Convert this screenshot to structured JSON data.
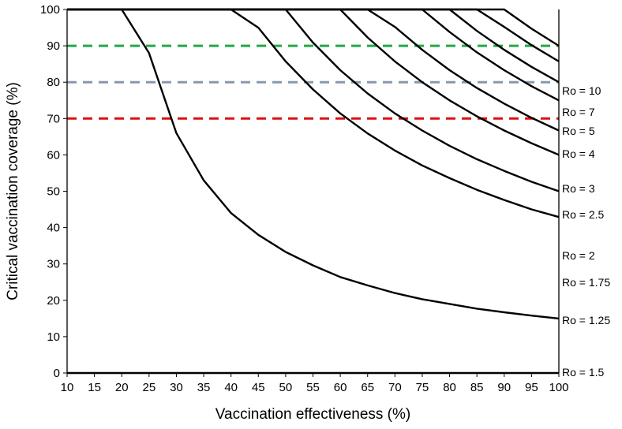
{
  "chart_data": {
    "type": "line",
    "title": "",
    "xlabel": "Vaccination effectiveness (%)",
    "ylabel": "Critical vaccination coverage (%)",
    "xlim": [
      10,
      100
    ],
    "ylim": [
      0,
      100
    ],
    "x_ticks": [
      10,
      15,
      20,
      25,
      30,
      35,
      40,
      45,
      50,
      55,
      60,
      65,
      70,
      75,
      80,
      85,
      90,
      95,
      100
    ],
    "y_ticks": [
      0,
      10,
      20,
      30,
      40,
      50,
      60,
      70,
      80,
      90,
      100
    ],
    "grid": false,
    "reference_lines": [
      {
        "y": 90,
        "color": "#22aa44",
        "style": "dashed"
      },
      {
        "y": 80,
        "color": "#8899aa",
        "style": "dashed"
      },
      {
        "y": 70,
        "color": "#dd1111",
        "style": "dashed"
      }
    ],
    "x": [
      10,
      15,
      20,
      25,
      30,
      35,
      40,
      45,
      50,
      55,
      60,
      65,
      70,
      75,
      80,
      85,
      90,
      95,
      100
    ],
    "series": [
      {
        "name": "Ro = 1.25",
        "label": "Ro = 1.25",
        "values": [
          100,
          100,
          100,
          88,
          66,
          53,
          44,
          38,
          33.3,
          29.6,
          26.4,
          24.1,
          22,
          20.3,
          19,
          17.7,
          16.7,
          15.8,
          15
        ]
      },
      {
        "name": "Ro = 1.75",
        "label": "Ro = 1.75",
        "values": [
          100,
          100,
          100,
          100,
          100,
          100,
          100,
          95,
          85.7,
          78,
          71.4,
          65.9,
          61.2,
          57.1,
          53.6,
          50.4,
          47.6,
          45,
          42.9
        ]
      },
      {
        "name": "Ro = 2",
        "label": "Ro = 2",
        "values": [
          100,
          100,
          100,
          100,
          100,
          100,
          100,
          100,
          100,
          90.9,
          83.3,
          76.9,
          71.4,
          66.7,
          62.5,
          58.8,
          55.6,
          52.6,
          50
        ]
      },
      {
        "name": "Ro = 2.5",
        "label": "Ro = 2.5",
        "values": [
          100,
          100,
          100,
          100,
          100,
          100,
          100,
          100,
          100,
          100,
          100,
          92.3,
          85.7,
          80,
          75,
          70.6,
          66.7,
          63.2,
          60
        ]
      },
      {
        "name": "Ro = 3",
        "label": "Ro = 3",
        "values": [
          100,
          100,
          100,
          100,
          100,
          100,
          100,
          100,
          100,
          100,
          100,
          100,
          95.2,
          88.9,
          83.3,
          78.4,
          74.1,
          70.2,
          66.7
        ]
      },
      {
        "name": "Ro = 4",
        "label": "Ro = 4",
        "values": [
          100,
          100,
          100,
          100,
          100,
          100,
          100,
          100,
          100,
          100,
          100,
          100,
          100,
          100,
          93.8,
          88.2,
          83.3,
          78.9,
          75
        ]
      },
      {
        "name": "Ro = 5",
        "label": "Ro = 5",
        "values": [
          100,
          100,
          100,
          100,
          100,
          100,
          100,
          100,
          100,
          100,
          100,
          100,
          100,
          100,
          100,
          94.1,
          88.9,
          84.2,
          80
        ]
      },
      {
        "name": "Ro = 7",
        "label": "Ro = 7",
        "values": [
          100,
          100,
          100,
          100,
          100,
          100,
          100,
          100,
          100,
          100,
          100,
          100,
          100,
          100,
          100,
          100,
          95.2,
          90.2,
          85.7
        ]
      },
      {
        "name": "Ro = 10",
        "label": "Ro = 10",
        "values": [
          100,
          100,
          100,
          100,
          100,
          100,
          100,
          100,
          100,
          100,
          100,
          100,
          100,
          100,
          100,
          100,
          100,
          94.7,
          90
        ]
      },
      {
        "name": "Ro = 1.5",
        "label": "Ro = 1.5",
        "values": [
          0,
          0,
          0,
          0,
          0,
          0,
          0,
          0,
          0,
          0,
          0,
          0,
          0,
          0,
          0,
          0,
          0,
          0,
          0
        ]
      }
    ]
  }
}
